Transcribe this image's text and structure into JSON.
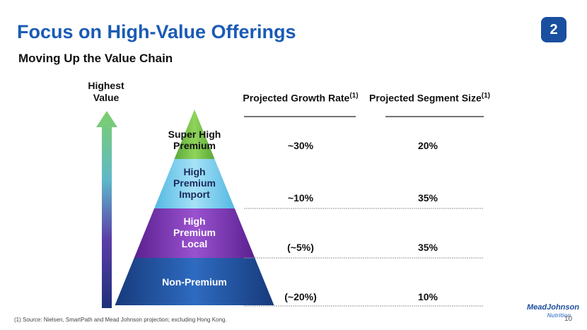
{
  "header": {
    "title": "Focus on High-Value Offerings",
    "subtitle": "Moving Up the Value Chain",
    "badge": "2"
  },
  "arrow_label": "Highest Value",
  "pyramid": {
    "levels": [
      "Super High Premium",
      "High Premium Import",
      "High Premium Local",
      "Non-Premium"
    ]
  },
  "table": {
    "headers": [
      {
        "text": "Projected Growth Rate",
        "note": "(1)"
      },
      {
        "text": "Projected Segment Size",
        "note": "(1)"
      }
    ],
    "rows": [
      [
        "~30%",
        "20%"
      ],
      [
        "~10%",
        "35%"
      ],
      [
        "(~5%)",
        "35%"
      ],
      [
        "(~20%)",
        "10%"
      ]
    ]
  },
  "footnote": "(1) Source: Nielsen, SmartPath and Mead Johnson projection; excluding Hong Kong.",
  "page_number": "10",
  "logo": {
    "name": "MeadJohnson",
    "tagline": "Nutrition"
  }
}
